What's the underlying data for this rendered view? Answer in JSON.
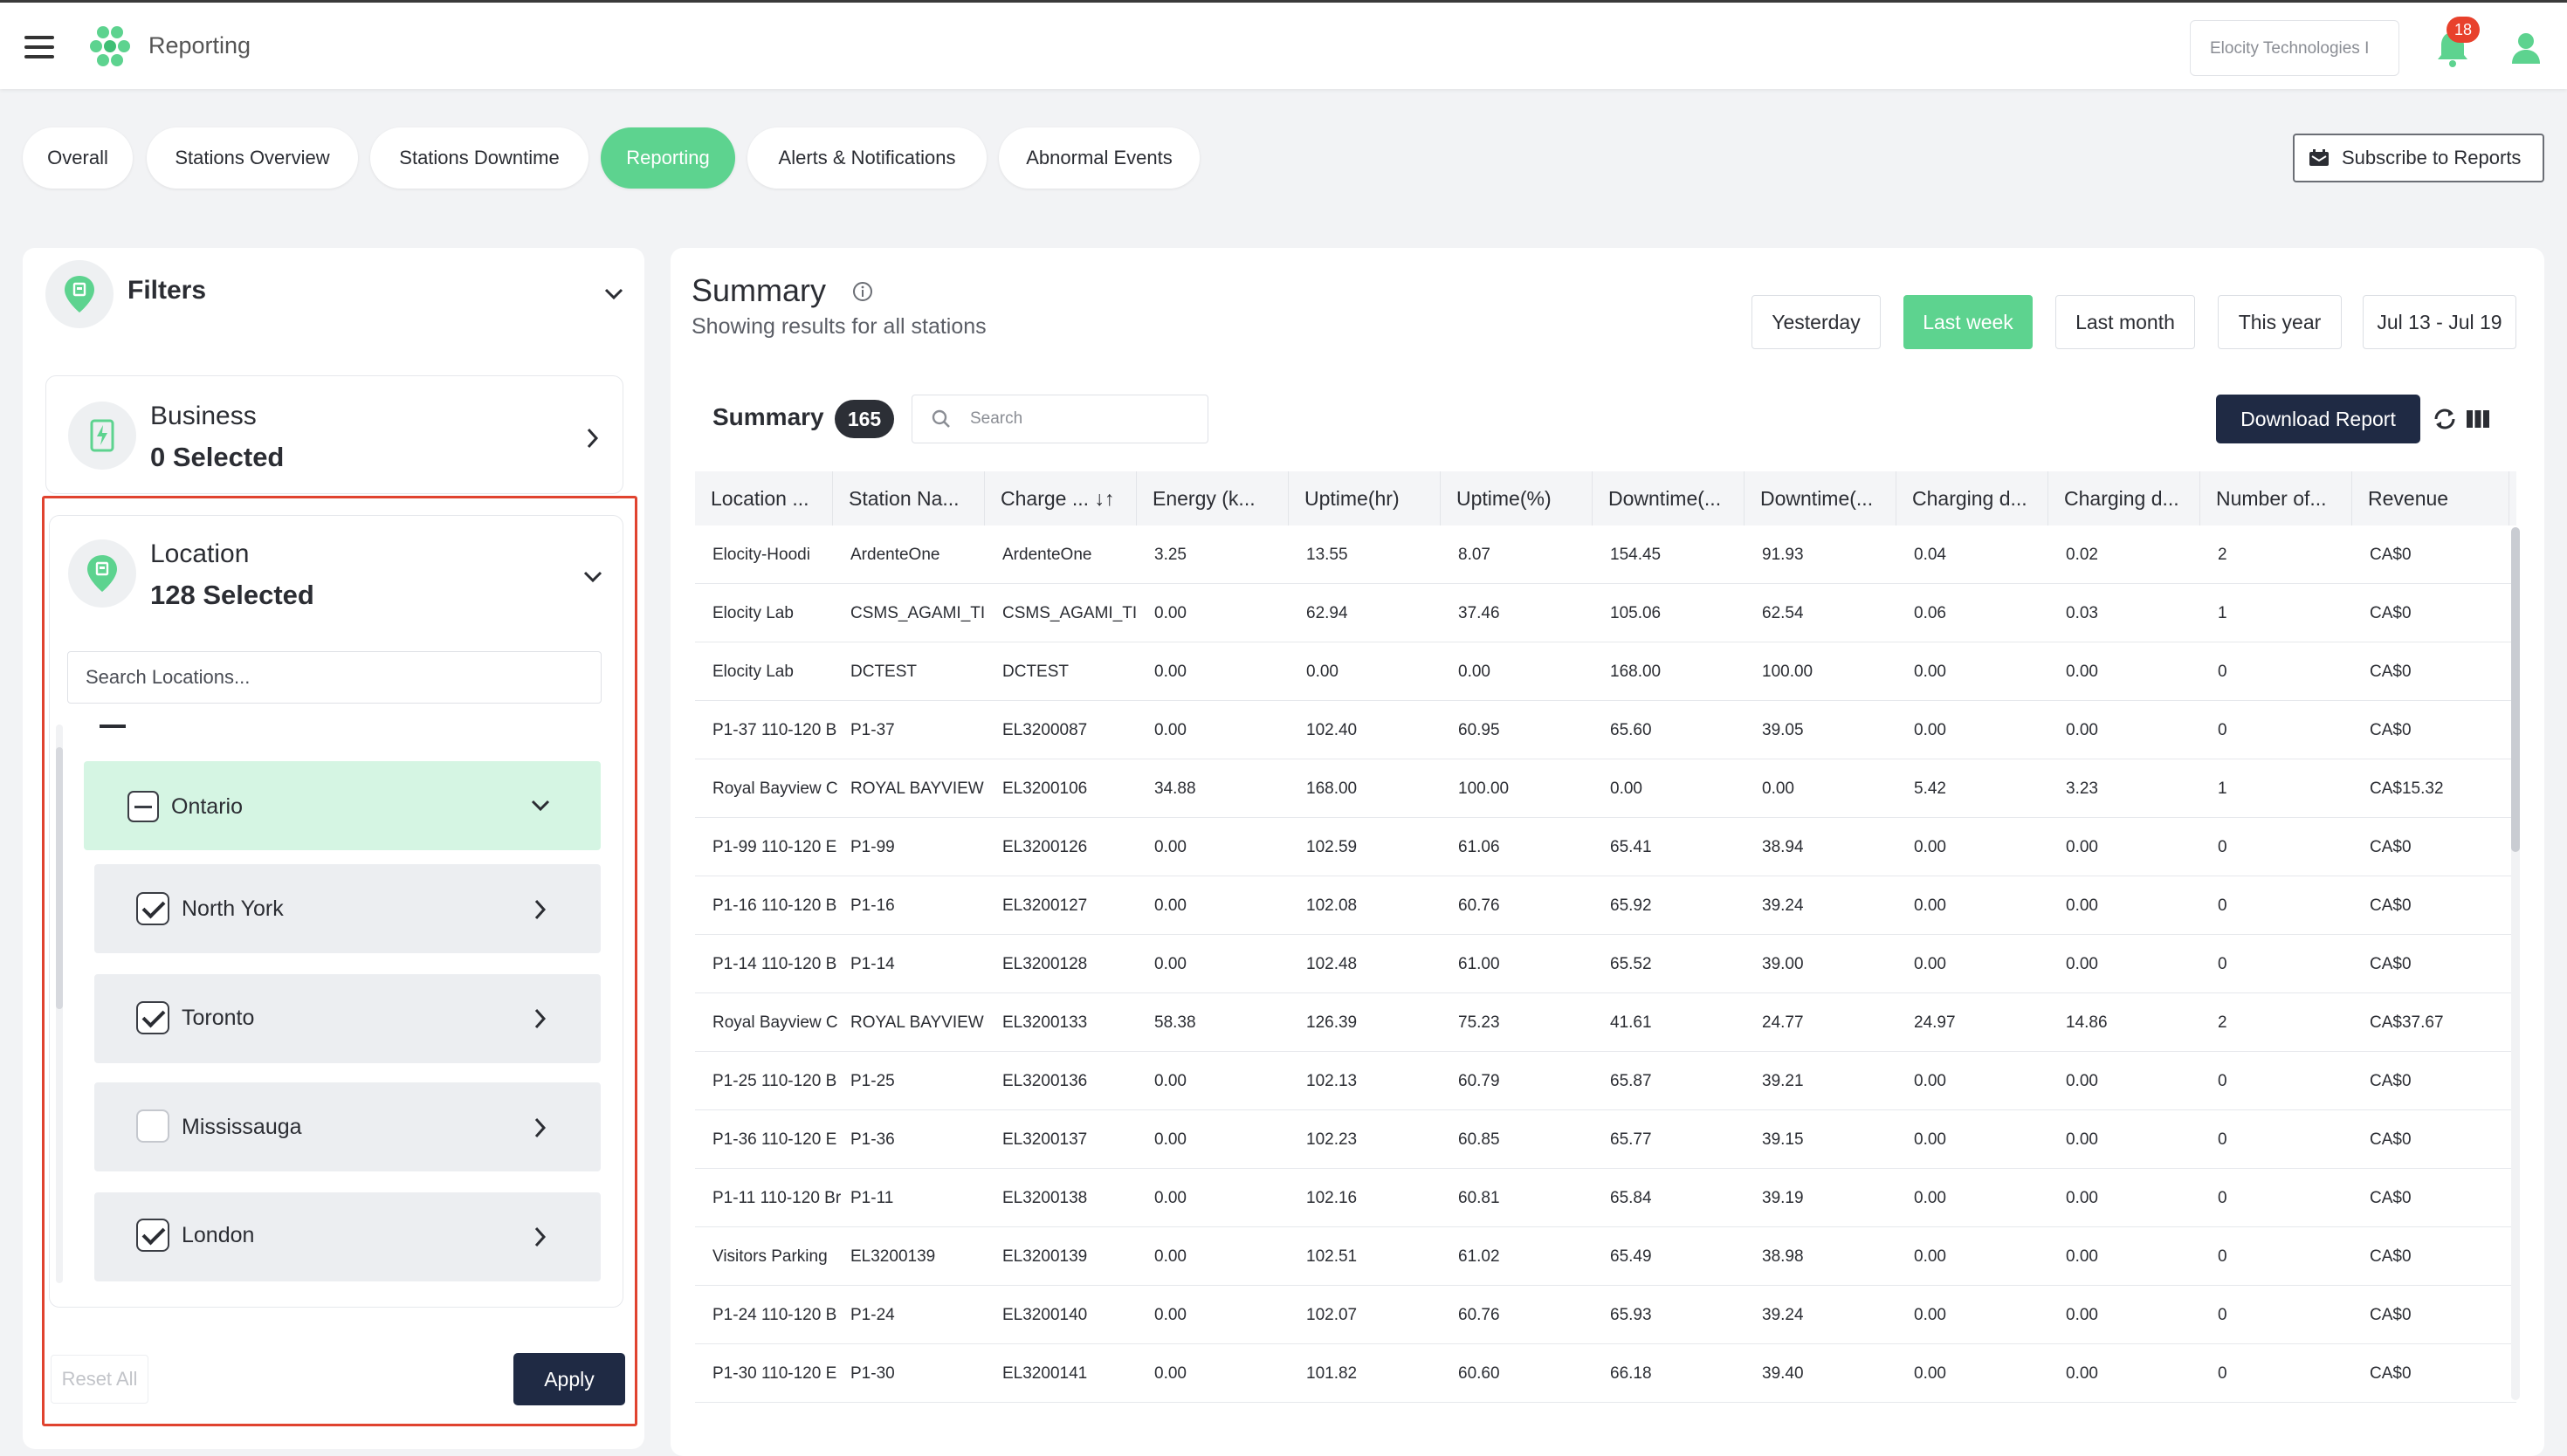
{
  "app": {
    "title": "Reporting"
  },
  "header": {
    "org": "Elocity Technologies I",
    "notifications": "18"
  },
  "tabs": [
    {
      "label": "Overall",
      "active": false
    },
    {
      "label": "Stations Overview",
      "active": false
    },
    {
      "label": "Stations Downtime",
      "active": false
    },
    {
      "label": "Reporting",
      "active": true
    },
    {
      "label": "Alerts & Notifications",
      "active": false
    },
    {
      "label": "Abnormal Events",
      "active": false
    }
  ],
  "subscribe_label": "Subscribe to Reports",
  "filters": {
    "title": "Filters",
    "business": {
      "label": "Business",
      "value": "0 Selected"
    },
    "location": {
      "label": "Location",
      "value": "128 Selected",
      "search_placeholder": "Search Locations...",
      "province": {
        "label": "Ontario",
        "state": "indeterminate"
      },
      "cities": [
        {
          "label": "North York",
          "checked": true
        },
        {
          "label": "Toronto",
          "checked": true
        },
        {
          "label": "Mississauga",
          "checked": false
        },
        {
          "label": "London",
          "checked": true
        }
      ]
    },
    "reset_label": "Reset All",
    "apply_label": "Apply"
  },
  "summary": {
    "title": "Summary",
    "subtitle": "Showing results for all stations",
    "ranges": [
      {
        "label": "Yesterday",
        "active": false
      },
      {
        "label": "Last week",
        "active": true
      },
      {
        "label": "Last month",
        "active": false
      },
      {
        "label": "This year",
        "active": false
      },
      {
        "label": "Jul 13 - Jul 19",
        "active": false
      }
    ],
    "table_title": "Summary",
    "count": "165",
    "search_placeholder": "Search",
    "download_label": "Download Report"
  },
  "table": {
    "columns": [
      "Location ...",
      "Station Na...",
      "Charge ... ↓↑",
      "Energy (k...",
      "Uptime(hr)",
      "Uptime(%)",
      "Downtime(...",
      "Downtime(...",
      "Charging d...",
      "Charging d...",
      "Number of...",
      "Revenue"
    ],
    "rows": [
      [
        "Elocity-Hoodi",
        "ArdenteOne",
        "ArdenteOne",
        "3.25",
        "13.55",
        "8.07",
        "154.45",
        "91.93",
        "0.04",
        "0.02",
        "2",
        "CA$0"
      ],
      [
        "Elocity Lab",
        "CSMS_AGAMI_TI",
        "CSMS_AGAMI_TI",
        "0.00",
        "62.94",
        "37.46",
        "105.06",
        "62.54",
        "0.06",
        "0.03",
        "1",
        "CA$0"
      ],
      [
        "Elocity Lab",
        "DCTEST",
        "DCTEST",
        "0.00",
        "0.00",
        "0.00",
        "168.00",
        "100.00",
        "0.00",
        "0.00",
        "0",
        "CA$0"
      ],
      [
        "P1-37 110-120 B",
        "P1-37",
        "EL3200087",
        "0.00",
        "102.40",
        "60.95",
        "65.60",
        "39.05",
        "0.00",
        "0.00",
        "0",
        "CA$0"
      ],
      [
        "Royal Bayview C",
        "ROYAL BAYVIEW",
        "EL3200106",
        "34.88",
        "168.00",
        "100.00",
        "0.00",
        "0.00",
        "5.42",
        "3.23",
        "1",
        "CA$15.32"
      ],
      [
        "P1-99 110-120 E",
        "P1-99",
        "EL3200126",
        "0.00",
        "102.59",
        "61.06",
        "65.41",
        "38.94",
        "0.00",
        "0.00",
        "0",
        "CA$0"
      ],
      [
        "P1-16 110-120 B",
        "P1-16",
        "EL3200127",
        "0.00",
        "102.08",
        "60.76",
        "65.92",
        "39.24",
        "0.00",
        "0.00",
        "0",
        "CA$0"
      ],
      [
        "P1-14 110-120 B",
        "P1-14",
        "EL3200128",
        "0.00",
        "102.48",
        "61.00",
        "65.52",
        "39.00",
        "0.00",
        "0.00",
        "0",
        "CA$0"
      ],
      [
        "Royal Bayview C",
        "ROYAL BAYVIEW",
        "EL3200133",
        "58.38",
        "126.39",
        "75.23",
        "41.61",
        "24.77",
        "24.97",
        "14.86",
        "2",
        "CA$37.67"
      ],
      [
        "P1-25 110-120 B",
        "P1-25",
        "EL3200136",
        "0.00",
        "102.13",
        "60.79",
        "65.87",
        "39.21",
        "0.00",
        "0.00",
        "0",
        "CA$0"
      ],
      [
        "P1-36 110-120 E",
        "P1-36",
        "EL3200137",
        "0.00",
        "102.23",
        "60.85",
        "65.77",
        "39.15",
        "0.00",
        "0.00",
        "0",
        "CA$0"
      ],
      [
        "P1-11 110-120 Br",
        "P1-11",
        "EL3200138",
        "0.00",
        "102.16",
        "60.81",
        "65.84",
        "39.19",
        "0.00",
        "0.00",
        "0",
        "CA$0"
      ],
      [
        "Visitors Parking",
        "EL3200139",
        "EL3200139",
        "0.00",
        "102.51",
        "61.02",
        "65.49",
        "38.98",
        "0.00",
        "0.00",
        "0",
        "CA$0"
      ],
      [
        "P1-24 110-120 B",
        "P1-24",
        "EL3200140",
        "0.00",
        "102.07",
        "60.76",
        "65.93",
        "39.24",
        "0.00",
        "0.00",
        "0",
        "CA$0"
      ],
      [
        "P1-30 110-120 E",
        "P1-30",
        "EL3200141",
        "0.00",
        "101.82",
        "60.60",
        "66.18",
        "39.40",
        "0.00",
        "0.00",
        "0",
        "CA$0"
      ]
    ]
  },
  "colors": {
    "accent": "#5dd38f",
    "navy": "#1f2a44",
    "alert": "#e8412c",
    "selected_row": "#d5f5e3"
  }
}
